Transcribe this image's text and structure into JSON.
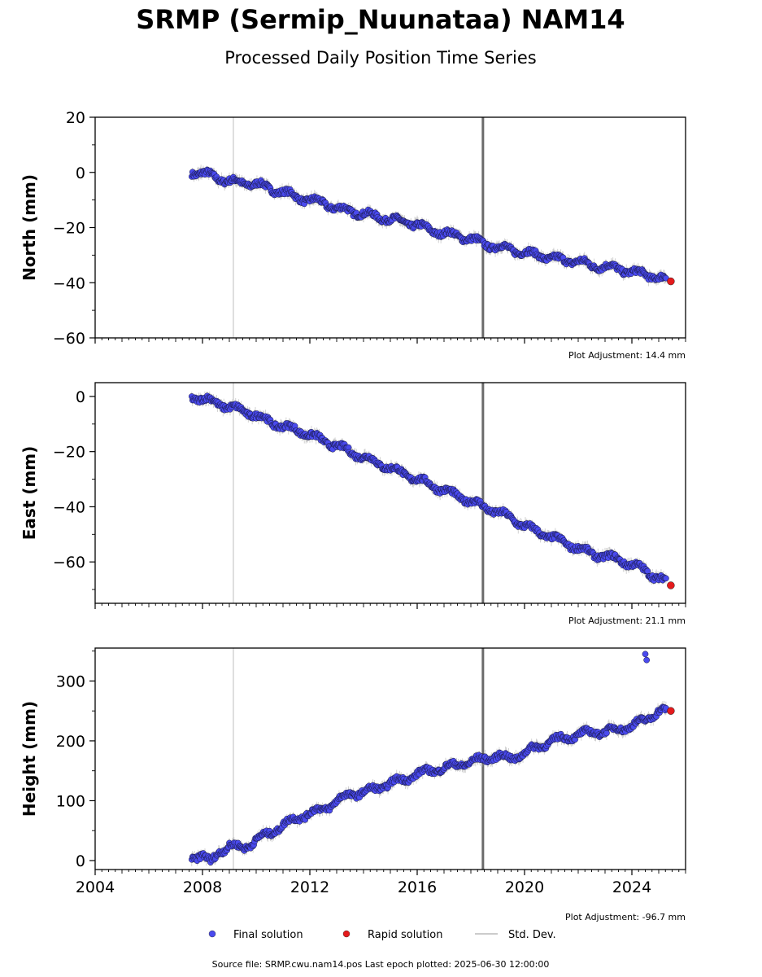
{
  "title": "SRMP (Sermip_Nuunataa) NAM14",
  "subtitle": "Processed Daily Position Time Series",
  "footer": "Source file: SRMP.cwu.nam14.pos  Last epoch plotted: 2025-06-30 12:00:00",
  "legend": {
    "final_label": "Final solution",
    "rapid_label": "Rapid solution",
    "std_label": "Std. Dev.",
    "placement": "bottom-center"
  },
  "colors": {
    "final": "#4a4aee",
    "rapid": "#e41a1c",
    "std": "#999999",
    "event_light": "#d3d3d3",
    "event_dark": "#6b6b6b"
  },
  "chart_data": [
    {
      "type": "scatter",
      "ylabel": "North (mm)",
      "adjustment": "Plot Adjustment: 14.4 mm",
      "xlim": [
        2004,
        2026
      ],
      "ylim": [
        -60,
        20
      ],
      "xticks": [
        2004,
        2008,
        2012,
        2016,
        2020,
        2024
      ],
      "yticks": [
        -60,
        -40,
        -20,
        0,
        20
      ],
      "ytick_labels": [
        "−60",
        "−40",
        "−20",
        "0",
        "20"
      ],
      "event_lines": [
        {
          "x": 2009.15,
          "style": "light"
        },
        {
          "x": 2018.45,
          "style": "dark"
        }
      ],
      "series": [
        {
          "name": "Final solution",
          "x": [
            2007.6,
            2008.0,
            2008.5,
            2009.0,
            2009.5,
            2010.0,
            2010.5,
            2011.0,
            2011.5,
            2012.0,
            2012.5,
            2013.0,
            2013.5,
            2014.0,
            2014.5,
            2015.0,
            2015.5,
            2016.0,
            2016.5,
            2017.0,
            2017.5,
            2018.0,
            2018.5,
            2019.0,
            2019.5,
            2020.0,
            2020.5,
            2021.0,
            2021.5,
            2022.0,
            2022.5,
            2023.0,
            2023.5,
            2024.0,
            2024.5,
            2025.0,
            2025.3
          ],
          "values": [
            0,
            0,
            -2,
            -3,
            -4,
            -4,
            -6,
            -7,
            -9,
            -10,
            -11,
            -13,
            -14,
            -15,
            -16,
            -17,
            -18,
            -19,
            -21,
            -22,
            -23,
            -24,
            -26,
            -27,
            -28,
            -29,
            -30,
            -31,
            -32,
            -32,
            -34,
            -34,
            -35,
            -36,
            -37,
            -38,
            -39
          ]
        },
        {
          "name": "Rapid solution",
          "x": [
            2025.45
          ],
          "values": [
            -39.5
          ]
        }
      ]
    },
    {
      "type": "scatter",
      "ylabel": "East (mm)",
      "adjustment": "Plot Adjustment: 21.1 mm",
      "xlim": [
        2004,
        2026
      ],
      "ylim": [
        -75,
        5
      ],
      "xticks": [
        2004,
        2008,
        2012,
        2016,
        2020,
        2024
      ],
      "yticks": [
        -60,
        -40,
        -20,
        0
      ],
      "ytick_labels": [
        "−60",
        "−40",
        "−20",
        "0"
      ],
      "event_lines": [
        {
          "x": 2009.15,
          "style": "light"
        },
        {
          "x": 2018.45,
          "style": "dark"
        }
      ],
      "series": [
        {
          "name": "Final solution",
          "x": [
            2007.6,
            2008.0,
            2008.5,
            2009.0,
            2009.5,
            2010.0,
            2010.5,
            2011.0,
            2011.5,
            2012.0,
            2012.5,
            2013.0,
            2013.5,
            2014.0,
            2014.5,
            2015.0,
            2015.5,
            2016.0,
            2016.5,
            2017.0,
            2017.5,
            2018.0,
            2018.5,
            2019.0,
            2019.5,
            2020.0,
            2020.5,
            2021.0,
            2021.5,
            2022.0,
            2022.5,
            2023.0,
            2023.5,
            2024.0,
            2024.5,
            2025.0,
            2025.3
          ],
          "values": [
            0,
            -1,
            -2,
            -4,
            -5,
            -7,
            -9,
            -11,
            -12,
            -14,
            -16,
            -18,
            -20,
            -22,
            -24,
            -26,
            -28,
            -30,
            -32,
            -34,
            -36,
            -38,
            -40,
            -42,
            -44,
            -47,
            -49,
            -51,
            -53,
            -55,
            -57,
            -58,
            -59,
            -61,
            -63,
            -66,
            -67
          ]
        },
        {
          "name": "Rapid solution",
          "x": [
            2025.45
          ],
          "values": [
            -68.5
          ]
        }
      ]
    },
    {
      "type": "scatter",
      "ylabel": "Height (mm)",
      "adjustment": "Plot Adjustment: -96.7 mm",
      "xlim": [
        2004,
        2026
      ],
      "ylim": [
        -15,
        355
      ],
      "xticks": [
        2004,
        2008,
        2012,
        2016,
        2020,
        2024
      ],
      "xtick_labels": [
        "2004",
        "2008",
        "2012",
        "2016",
        "2020",
        "2024"
      ],
      "yticks": [
        0,
        100,
        200,
        300
      ],
      "ytick_labels": [
        "0",
        "100",
        "200",
        "300"
      ],
      "event_lines": [
        {
          "x": 2009.15,
          "style": "light"
        },
        {
          "x": 2018.45,
          "style": "dark"
        }
      ],
      "series": [
        {
          "name": "Final solution",
          "x": [
            2007.6,
            2008.0,
            2008.3,
            2008.6,
            2009.0,
            2009.5,
            2010.0,
            2010.5,
            2011.0,
            2011.5,
            2012.0,
            2012.5,
            2013.0,
            2013.5,
            2014.0,
            2014.5,
            2015.0,
            2015.5,
            2016.0,
            2016.5,
            2017.0,
            2017.5,
            2018.0,
            2018.5,
            2019.0,
            2019.5,
            2020.0,
            2020.5,
            2021.0,
            2021.5,
            2022.0,
            2022.5,
            2023.0,
            2023.5,
            2024.0,
            2024.5,
            2025.0,
            2025.3,
            2024.5,
            2024.55
          ],
          "values": [
            5,
            10,
            -5,
            15,
            25,
            20,
            35,
            45,
            60,
            70,
            80,
            85,
            100,
            110,
            115,
            120,
            130,
            135,
            145,
            150,
            155,
            160,
            165,
            170,
            175,
            170,
            180,
            190,
            200,
            205,
            210,
            215,
            215,
            220,
            225,
            235,
            250,
            250,
            345,
            335
          ]
        },
        {
          "name": "Rapid solution",
          "x": [
            2025.45
          ],
          "values": [
            250
          ]
        }
      ]
    }
  ]
}
